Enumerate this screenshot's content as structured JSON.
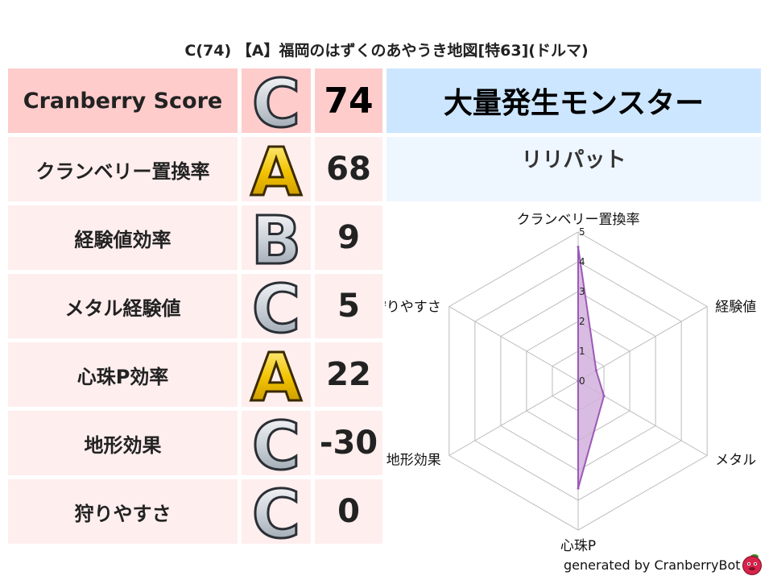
{
  "title": "C(74) 【A】福岡のはずくのあやうき地図[特63](ドルマ)",
  "score_table": {
    "rows": [
      {
        "label": "Cranberry Score",
        "grade": "C",
        "value": "74"
      },
      {
        "label": "クランベリー置換率",
        "grade": "A",
        "value": "68"
      },
      {
        "label": "経験値効率",
        "grade": "B",
        "value": "9"
      },
      {
        "label": "メタル経験値",
        "grade": "C",
        "value": "5"
      },
      {
        "label": "心珠P効率",
        "grade": "A",
        "value": "22"
      },
      {
        "label": "地形効果",
        "grade": "C",
        "value": "-30"
      },
      {
        "label": "狩りやすさ",
        "grade": "C",
        "value": "0"
      }
    ]
  },
  "monster_panel": {
    "heading": "大量発生モンスター",
    "monster": "リリパット"
  },
  "colors": {
    "header_row": "#ffcccc",
    "row": "#ffeeee",
    "panel_header": "#cce6ff",
    "panel_sub": "#eef6ff",
    "radar_line": "#9b59b6",
    "radar_fill": "#d2b0dc"
  },
  "chart_data": {
    "type": "radar",
    "axes": [
      "クランベリー置換率",
      "経験値",
      "メタル",
      "心珠P",
      "地形効果",
      "狩りやすさ"
    ],
    "values": [
      4.5,
      0.7,
      1.0,
      3.6,
      0,
      0
    ],
    "range": [
      0,
      5
    ],
    "ticks": [
      "0",
      "1",
      "2",
      "3",
      "4",
      "5"
    ],
    "grid": true
  },
  "footer": {
    "text": "generated by CranberryBot",
    "logo_icon": "cranberry-mascot-icon"
  }
}
